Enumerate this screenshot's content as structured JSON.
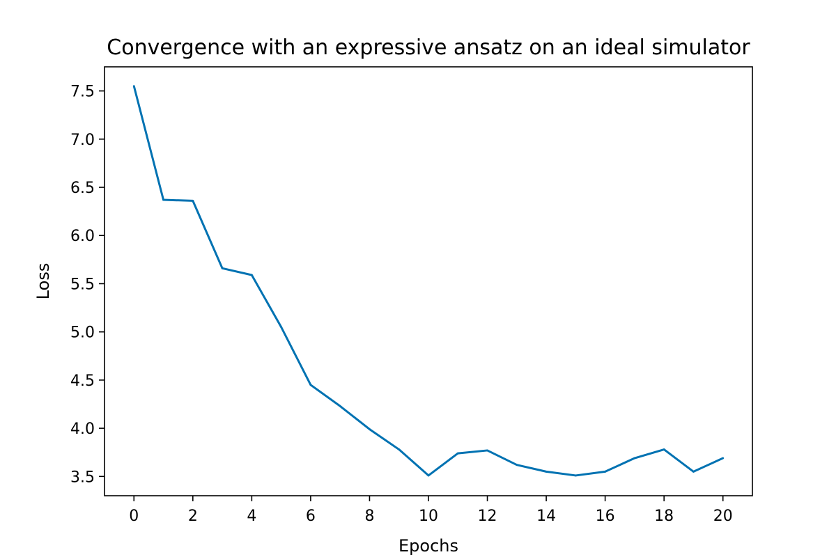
{
  "chart_data": {
    "type": "line",
    "title": "Convergence with an expressive ansatz on an ideal simulator",
    "xlabel": "Epochs",
    "ylabel": "Loss",
    "xlim": [
      -1,
      21
    ],
    "ylim": [
      3.3,
      7.75
    ],
    "xticks": [
      0,
      2,
      4,
      6,
      8,
      10,
      12,
      14,
      16,
      18,
      20
    ],
    "yticks": [
      3.5,
      4.0,
      4.5,
      5.0,
      5.5,
      6.0,
      6.5,
      7.0,
      7.5
    ],
    "ytick_labels": [
      "3.5",
      "4.0",
      "4.5",
      "5.0",
      "5.5",
      "6.0",
      "6.5",
      "7.0",
      "7.5"
    ],
    "grid": false,
    "line_color": "#0072B2",
    "series": [
      {
        "x": [
          0,
          1,
          2,
          3,
          4,
          5,
          6,
          7,
          8,
          9,
          10,
          11,
          12,
          13,
          14,
          15,
          16,
          17,
          18,
          19,
          20
        ],
        "values": [
          7.55,
          6.37,
          6.36,
          5.66,
          5.59,
          5.05,
          4.45,
          4.23,
          3.99,
          3.78,
          3.51,
          3.74,
          3.77,
          3.62,
          3.55,
          3.51,
          3.55,
          3.69,
          3.78,
          3.55,
          3.69
        ]
      }
    ]
  }
}
